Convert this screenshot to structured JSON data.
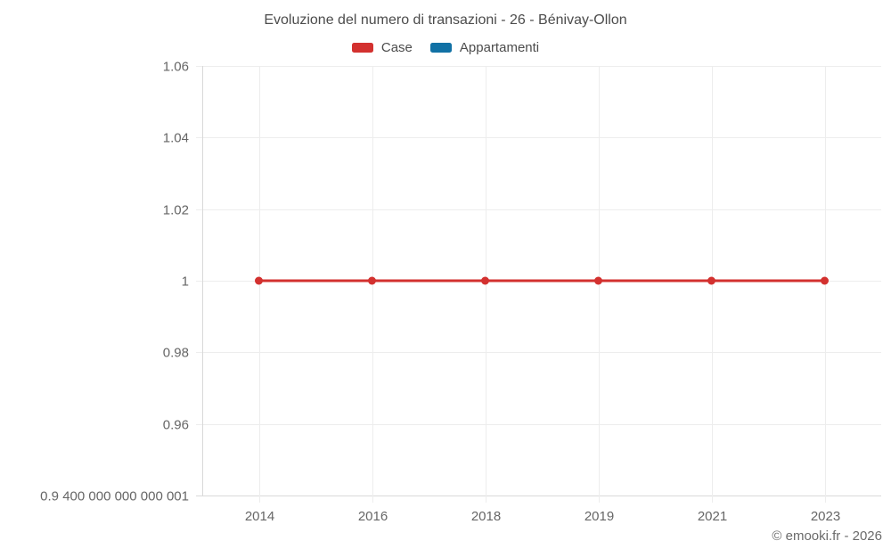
{
  "title": "Evoluzione del numero di transazioni - 26 - Bénivay-Ollon",
  "legend": {
    "items": [
      {
        "label": "Case",
        "color": "#d3312f"
      },
      {
        "label": "Appartamenti",
        "color": "#1171a5"
      }
    ]
  },
  "chart_data": {
    "type": "line",
    "title": "Evoluzione del numero di transazioni - 26 - Bénivay-Ollon",
    "categories": [
      "2014",
      "2016",
      "2018",
      "2019",
      "2021",
      "2023"
    ],
    "series": [
      {
        "name": "Case",
        "color": "#d3312f",
        "marker": "circle",
        "values": [
          1,
          1,
          1,
          1,
          1,
          1
        ]
      },
      {
        "name": "Appartamenti",
        "color": "#1171a5",
        "marker": "circle",
        "values": []
      }
    ],
    "ylim": [
      0.94,
      1.06
    ],
    "y_ticks": [
      {
        "value": 1.06,
        "label": "1.06"
      },
      {
        "value": 1.04,
        "label": "1.04"
      },
      {
        "value": 1.02,
        "label": "1.02"
      },
      {
        "value": 1,
        "label": "1"
      },
      {
        "value": 0.98,
        "label": "0.98"
      },
      {
        "value": 0.96,
        "label": "0.96"
      },
      {
        "value": 0.94,
        "label": "0.9 400 000 000 000 001"
      }
    ],
    "grid": true,
    "legend_position": "top",
    "xlabel": "",
    "ylabel": ""
  },
  "attribution": "© emooki.fr - 2026"
}
